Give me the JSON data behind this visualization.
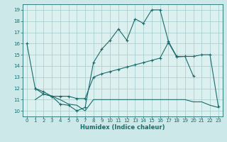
{
  "title": "",
  "xlabel": "Humidex (Indice chaleur)",
  "ylabel": "",
  "bg_color": "#cce8e8",
  "plot_bg_color": "#ddf0f0",
  "grid_color": "#aad0d0",
  "line_color": "#1a6b6b",
  "xlim": [
    -0.5,
    23.5
  ],
  "ylim": [
    9.5,
    19.5
  ],
  "yticks": [
    10,
    11,
    12,
    13,
    14,
    15,
    16,
    17,
    18,
    19
  ],
  "xticks": [
    0,
    1,
    2,
    3,
    4,
    5,
    6,
    7,
    8,
    9,
    10,
    11,
    12,
    13,
    14,
    15,
    16,
    17,
    18,
    19,
    20,
    21,
    22,
    23
  ],
  "line1_x": [
    0,
    1,
    2,
    3,
    4,
    5,
    6,
    7,
    8,
    9,
    10,
    11,
    12,
    13,
    14,
    15,
    16,
    17,
    18,
    19,
    20
  ],
  "line1_y": [
    16.0,
    12.0,
    11.5,
    11.3,
    10.6,
    10.5,
    10.0,
    10.3,
    14.3,
    15.5,
    16.3,
    17.3,
    16.3,
    18.2,
    17.8,
    19.0,
    19.0,
    16.2,
    14.85,
    14.85,
    13.1
  ],
  "line2_x": [
    1,
    2,
    3,
    4,
    5,
    6,
    7,
    8,
    9,
    10,
    11,
    12,
    13,
    14,
    15,
    16,
    17,
    18,
    19,
    20,
    21,
    22,
    23
  ],
  "line2_y": [
    12.0,
    11.7,
    11.3,
    11.3,
    11.3,
    11.1,
    11.1,
    13.0,
    13.3,
    13.5,
    13.7,
    13.9,
    14.1,
    14.3,
    14.5,
    14.7,
    16.1,
    14.8,
    14.85,
    14.85,
    15.0,
    15.0,
    10.4
  ],
  "line3_x": [
    1,
    2,
    3,
    4,
    5,
    6,
    7,
    8,
    9,
    10,
    11,
    12,
    13,
    14,
    15,
    16,
    17,
    18,
    19,
    20,
    21,
    22,
    23
  ],
  "line3_y": [
    11.0,
    11.5,
    11.3,
    11.0,
    10.6,
    10.5,
    10.0,
    11.0,
    11.0,
    11.0,
    11.0,
    11.0,
    11.0,
    11.0,
    11.0,
    11.0,
    11.0,
    11.0,
    11.0,
    10.8,
    10.8,
    10.5,
    10.3
  ]
}
